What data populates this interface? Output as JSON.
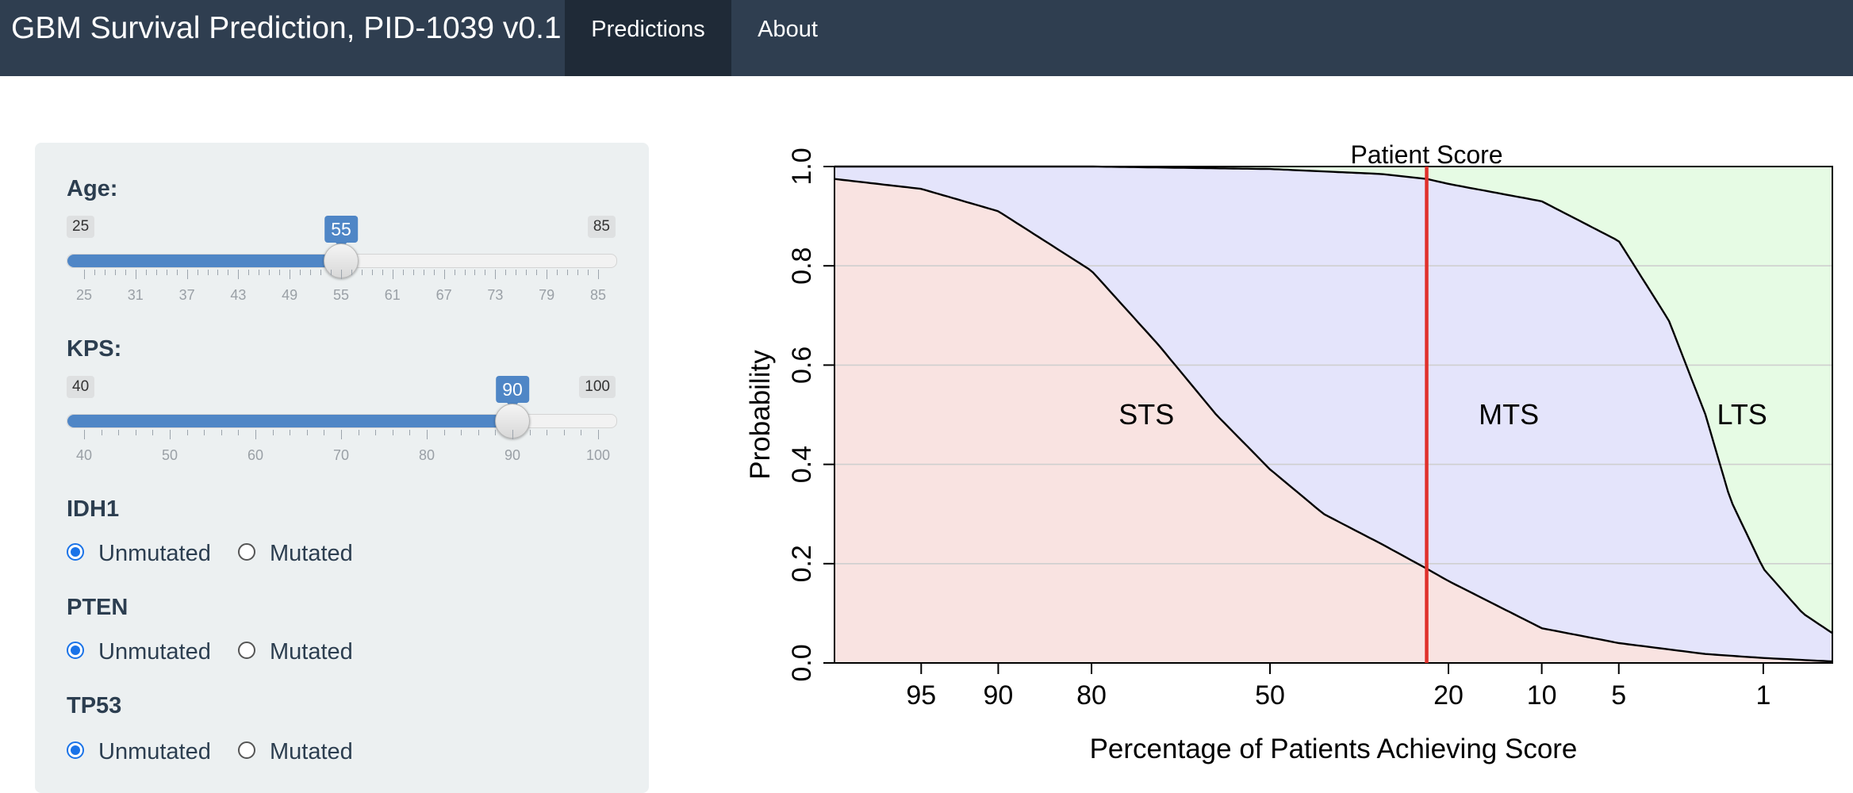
{
  "navbar": {
    "brand": "GBM Survival Prediction, PID-1039 v0.1",
    "tabs": [
      {
        "label": "Predictions",
        "active": true
      },
      {
        "label": "About",
        "active": false
      }
    ]
  },
  "sidebar": {
    "age": {
      "label": "Age:",
      "min": "25",
      "max": "85",
      "value": "55",
      "min_val": 25,
      "max_val": 85,
      "current": 55,
      "tick_labels": [
        "25",
        "31",
        "37",
        "43",
        "49",
        "55",
        "61",
        "67",
        "73",
        "79",
        "85"
      ]
    },
    "kps": {
      "label": "KPS:",
      "min": "40",
      "max": "100",
      "value": "90",
      "min_val": 40,
      "max_val": 100,
      "current": 90,
      "tick_labels": [
        "40",
        "50",
        "60",
        "70",
        "80",
        "90",
        "100"
      ]
    },
    "idh1": {
      "label": "IDH1",
      "options": [
        "Unmutated",
        "Mutated"
      ],
      "selected": "Unmutated"
    },
    "pten": {
      "label": "PTEN",
      "options": [
        "Unmutated",
        "Mutated"
      ],
      "selected": "Unmutated"
    },
    "tp53": {
      "label": "TP53",
      "options": [
        "Unmutated",
        "Mutated"
      ],
      "selected": "Unmutated"
    }
  },
  "chart_data": {
    "type": "area",
    "xlabel": "Percentage of Patients Achieving Score",
    "ylabel": "Probability",
    "x_tick_labels": [
      "95",
      "90",
      "80",
      "50",
      "20",
      "10",
      "5",
      "1"
    ],
    "x_ticks_percent": [
      95,
      90,
      80,
      50,
      20,
      10,
      5,
      1
    ],
    "x_range_percent": [
      98,
      0.4
    ],
    "y_ticks": [
      "0.0",
      "0.2",
      "0.4",
      "0.6",
      "0.8",
      "1.0"
    ],
    "ylim": [
      0,
      1
    ],
    "grid": "horizontal",
    "patient_score": {
      "label": "Patient Score",
      "x_percent": 23,
      "color": "#e0312b"
    },
    "regions": [
      {
        "name": "STS",
        "color": "#f9e3e1"
      },
      {
        "name": "MTS",
        "color": "#e4e4fb"
      },
      {
        "name": "LTS",
        "color": "#e6fbe4"
      }
    ],
    "boundary_curves": [
      {
        "name": "STS/MTS",
        "points": [
          [
            98,
            0.975
          ],
          [
            95,
            0.955
          ],
          [
            90,
            0.91
          ],
          [
            80,
            0.79
          ],
          [
            70,
            0.64
          ],
          [
            60,
            0.5
          ],
          [
            50,
            0.39
          ],
          [
            40,
            0.3
          ],
          [
            30,
            0.24
          ],
          [
            23,
            0.19
          ],
          [
            20,
            0.165
          ],
          [
            10,
            0.07
          ],
          [
            5,
            0.04
          ],
          [
            2,
            0.018
          ],
          [
            1,
            0.01
          ],
          [
            0.4,
            0.003
          ]
        ]
      },
      {
        "name": "MTS/LTS",
        "points": [
          [
            98,
            1.0
          ],
          [
            80,
            1.0
          ],
          [
            50,
            0.995
          ],
          [
            30,
            0.985
          ],
          [
            23,
            0.975
          ],
          [
            20,
            0.965
          ],
          [
            10,
            0.93
          ],
          [
            5,
            0.85
          ],
          [
            3,
            0.69
          ],
          [
            2,
            0.5
          ],
          [
            1.5,
            0.33
          ],
          [
            1,
            0.19
          ],
          [
            0.6,
            0.1
          ],
          [
            0.4,
            0.06
          ]
        ]
      }
    ]
  }
}
